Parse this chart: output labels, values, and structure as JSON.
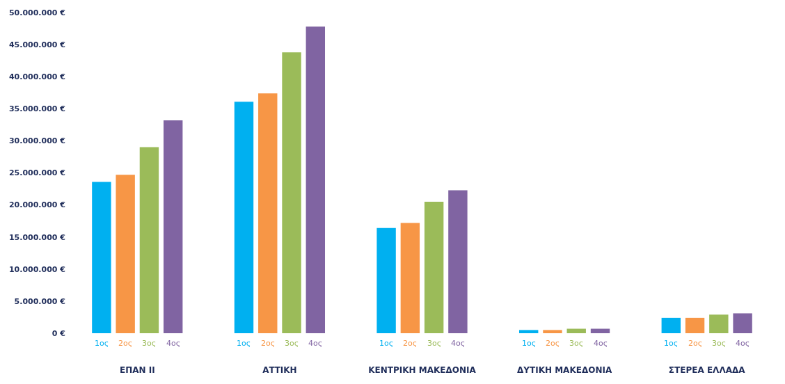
{
  "chart_data": {
    "type": "bar",
    "categories": [
      "ΕΠΑΝ ΙΙ",
      "ΑΤΤΙΚΗ",
      "ΚΕΝΤΡΙΚΗ ΜΑΚΕΔΟΝΙΑ",
      "ΔΥΤΙΚΗ ΜΑΚΕΔΟΝΙΑ",
      "ΣΤΕΡΕΑ ΕΛΛΑΔΑ"
    ],
    "series": [
      {
        "name": "1ος",
        "color": "#00b0f0",
        "values": [
          23600000,
          36100000,
          16400000,
          500000,
          2400000
        ]
      },
      {
        "name": "2ος",
        "color": "#f79646",
        "values": [
          24700000,
          37400000,
          17200000,
          500000,
          2400000
        ]
      },
      {
        "name": "3ος",
        "color": "#9bbb59",
        "values": [
          29000000,
          43800000,
          20500000,
          700000,
          2900000
        ]
      },
      {
        "name": "4ος",
        "color": "#8064a2",
        "values": [
          33200000,
          47800000,
          22300000,
          700000,
          3100000
        ]
      }
    ],
    "ylim": [
      0,
      50000000
    ],
    "yticks": [
      {
        "value": 0,
        "label": "0 €"
      },
      {
        "value": 5000000,
        "label": "5.000.000 €"
      },
      {
        "value": 10000000,
        "label": "10.000.000 €"
      },
      {
        "value": 15000000,
        "label": "15.000.000 €"
      },
      {
        "value": 20000000,
        "label": "20.000.000 €"
      },
      {
        "value": 25000000,
        "label": "25.000.000 €"
      },
      {
        "value": 30000000,
        "label": "30.000.000 €"
      },
      {
        "value": 35000000,
        "label": "35.000.000 €"
      },
      {
        "value": 40000000,
        "label": "40.000.000 €"
      },
      {
        "value": 45000000,
        "label": "45.000.000 €"
      },
      {
        "value": 50000000,
        "label": "50.000.000 €"
      }
    ],
    "grid": false,
    "legend": false
  }
}
